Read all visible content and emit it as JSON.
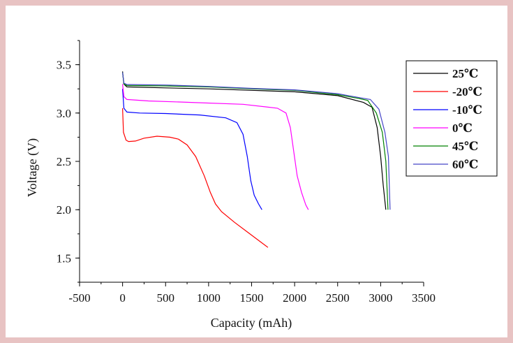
{
  "chart_data": {
    "type": "line",
    "title": "",
    "xlabel": "Capacity (mAh)",
    "ylabel": "Voltage (V)",
    "xlim": [
      -500,
      3500
    ],
    "ylim": [
      1.25,
      3.75
    ],
    "xticks": [
      -500,
      0,
      500,
      1000,
      1500,
      2000,
      2500,
      3000,
      3500
    ],
    "xtick_labels": [
      "-500",
      "0",
      "500",
      "1000",
      "1500",
      "2000",
      "2500",
      "3000",
      "3500"
    ],
    "yticks": [
      1.5,
      2.0,
      2.5,
      3.0,
      3.5
    ],
    "ytick_labels": [
      "1.5",
      "2.0",
      "2.5",
      "3.0",
      "3.5"
    ],
    "grid": false,
    "legend_position": "top-right",
    "series": [
      {
        "name": "25℃",
        "color": "#000000",
        "points": [
          [
            0,
            3.43
          ],
          [
            15,
            3.3
          ],
          [
            50,
            3.27
          ],
          [
            500,
            3.26
          ],
          [
            1000,
            3.25
          ],
          [
            1500,
            3.235
          ],
          [
            2000,
            3.22
          ],
          [
            2500,
            3.18
          ],
          [
            2800,
            3.11
          ],
          [
            2900,
            3.06
          ],
          [
            2960,
            2.85
          ],
          [
            3000,
            2.55
          ],
          [
            3030,
            2.25
          ],
          [
            3060,
            2.0
          ]
        ]
      },
      {
        "name": "-20℃",
        "color": "#ff0000",
        "points": [
          [
            0,
            3.05
          ],
          [
            10,
            2.8
          ],
          [
            40,
            2.72
          ],
          [
            70,
            2.705
          ],
          [
            150,
            2.71
          ],
          [
            250,
            2.74
          ],
          [
            400,
            2.76
          ],
          [
            550,
            2.75
          ],
          [
            650,
            2.73
          ],
          [
            750,
            2.67
          ],
          [
            850,
            2.55
          ],
          [
            950,
            2.35
          ],
          [
            1020,
            2.18
          ],
          [
            1080,
            2.06
          ],
          [
            1150,
            1.98
          ],
          [
            1300,
            1.87
          ],
          [
            1450,
            1.77
          ],
          [
            1600,
            1.67
          ],
          [
            1690,
            1.61
          ]
        ]
      },
      {
        "name": "-10℃",
        "color": "#0000ff",
        "points": [
          [
            0,
            3.25
          ],
          [
            15,
            3.05
          ],
          [
            50,
            3.01
          ],
          [
            200,
            3.0
          ],
          [
            500,
            2.995
          ],
          [
            900,
            2.98
          ],
          [
            1200,
            2.95
          ],
          [
            1330,
            2.9
          ],
          [
            1400,
            2.78
          ],
          [
            1450,
            2.55
          ],
          [
            1490,
            2.3
          ],
          [
            1530,
            2.15
          ],
          [
            1580,
            2.06
          ],
          [
            1620,
            2.0
          ]
        ]
      },
      {
        "name": "0℃",
        "color": "#ff00ff",
        "points": [
          [
            0,
            3.3
          ],
          [
            15,
            3.17
          ],
          [
            50,
            3.14
          ],
          [
            300,
            3.125
          ],
          [
            800,
            3.11
          ],
          [
            1400,
            3.09
          ],
          [
            1800,
            3.05
          ],
          [
            1900,
            3.0
          ],
          [
            1950,
            2.85
          ],
          [
            1990,
            2.6
          ],
          [
            2030,
            2.35
          ],
          [
            2080,
            2.18
          ],
          [
            2130,
            2.05
          ],
          [
            2160,
            2.0
          ]
        ]
      },
      {
        "name": "45℃",
        "color": "#008000",
        "points": [
          [
            0,
            3.42
          ],
          [
            15,
            3.3
          ],
          [
            50,
            3.285
          ],
          [
            500,
            3.28
          ],
          [
            1000,
            3.27
          ],
          [
            1500,
            3.25
          ],
          [
            2000,
            3.235
          ],
          [
            2500,
            3.19
          ],
          [
            2750,
            3.15
          ],
          [
            2850,
            3.13
          ],
          [
            2950,
            3.0
          ],
          [
            3020,
            2.8
          ],
          [
            3060,
            2.5
          ],
          [
            3085,
            2.0
          ]
        ]
      },
      {
        "name": "60℃",
        "color": "#4646c8",
        "points": [
          [
            0,
            3.42
          ],
          [
            15,
            3.31
          ],
          [
            50,
            3.295
          ],
          [
            500,
            3.29
          ],
          [
            1000,
            3.275
          ],
          [
            1500,
            3.255
          ],
          [
            2000,
            3.24
          ],
          [
            2500,
            3.2
          ],
          [
            2750,
            3.16
          ],
          [
            2880,
            3.14
          ],
          [
            2980,
            3.04
          ],
          [
            3050,
            2.8
          ],
          [
            3090,
            2.55
          ],
          [
            3110,
            2.0
          ]
        ]
      }
    ]
  }
}
